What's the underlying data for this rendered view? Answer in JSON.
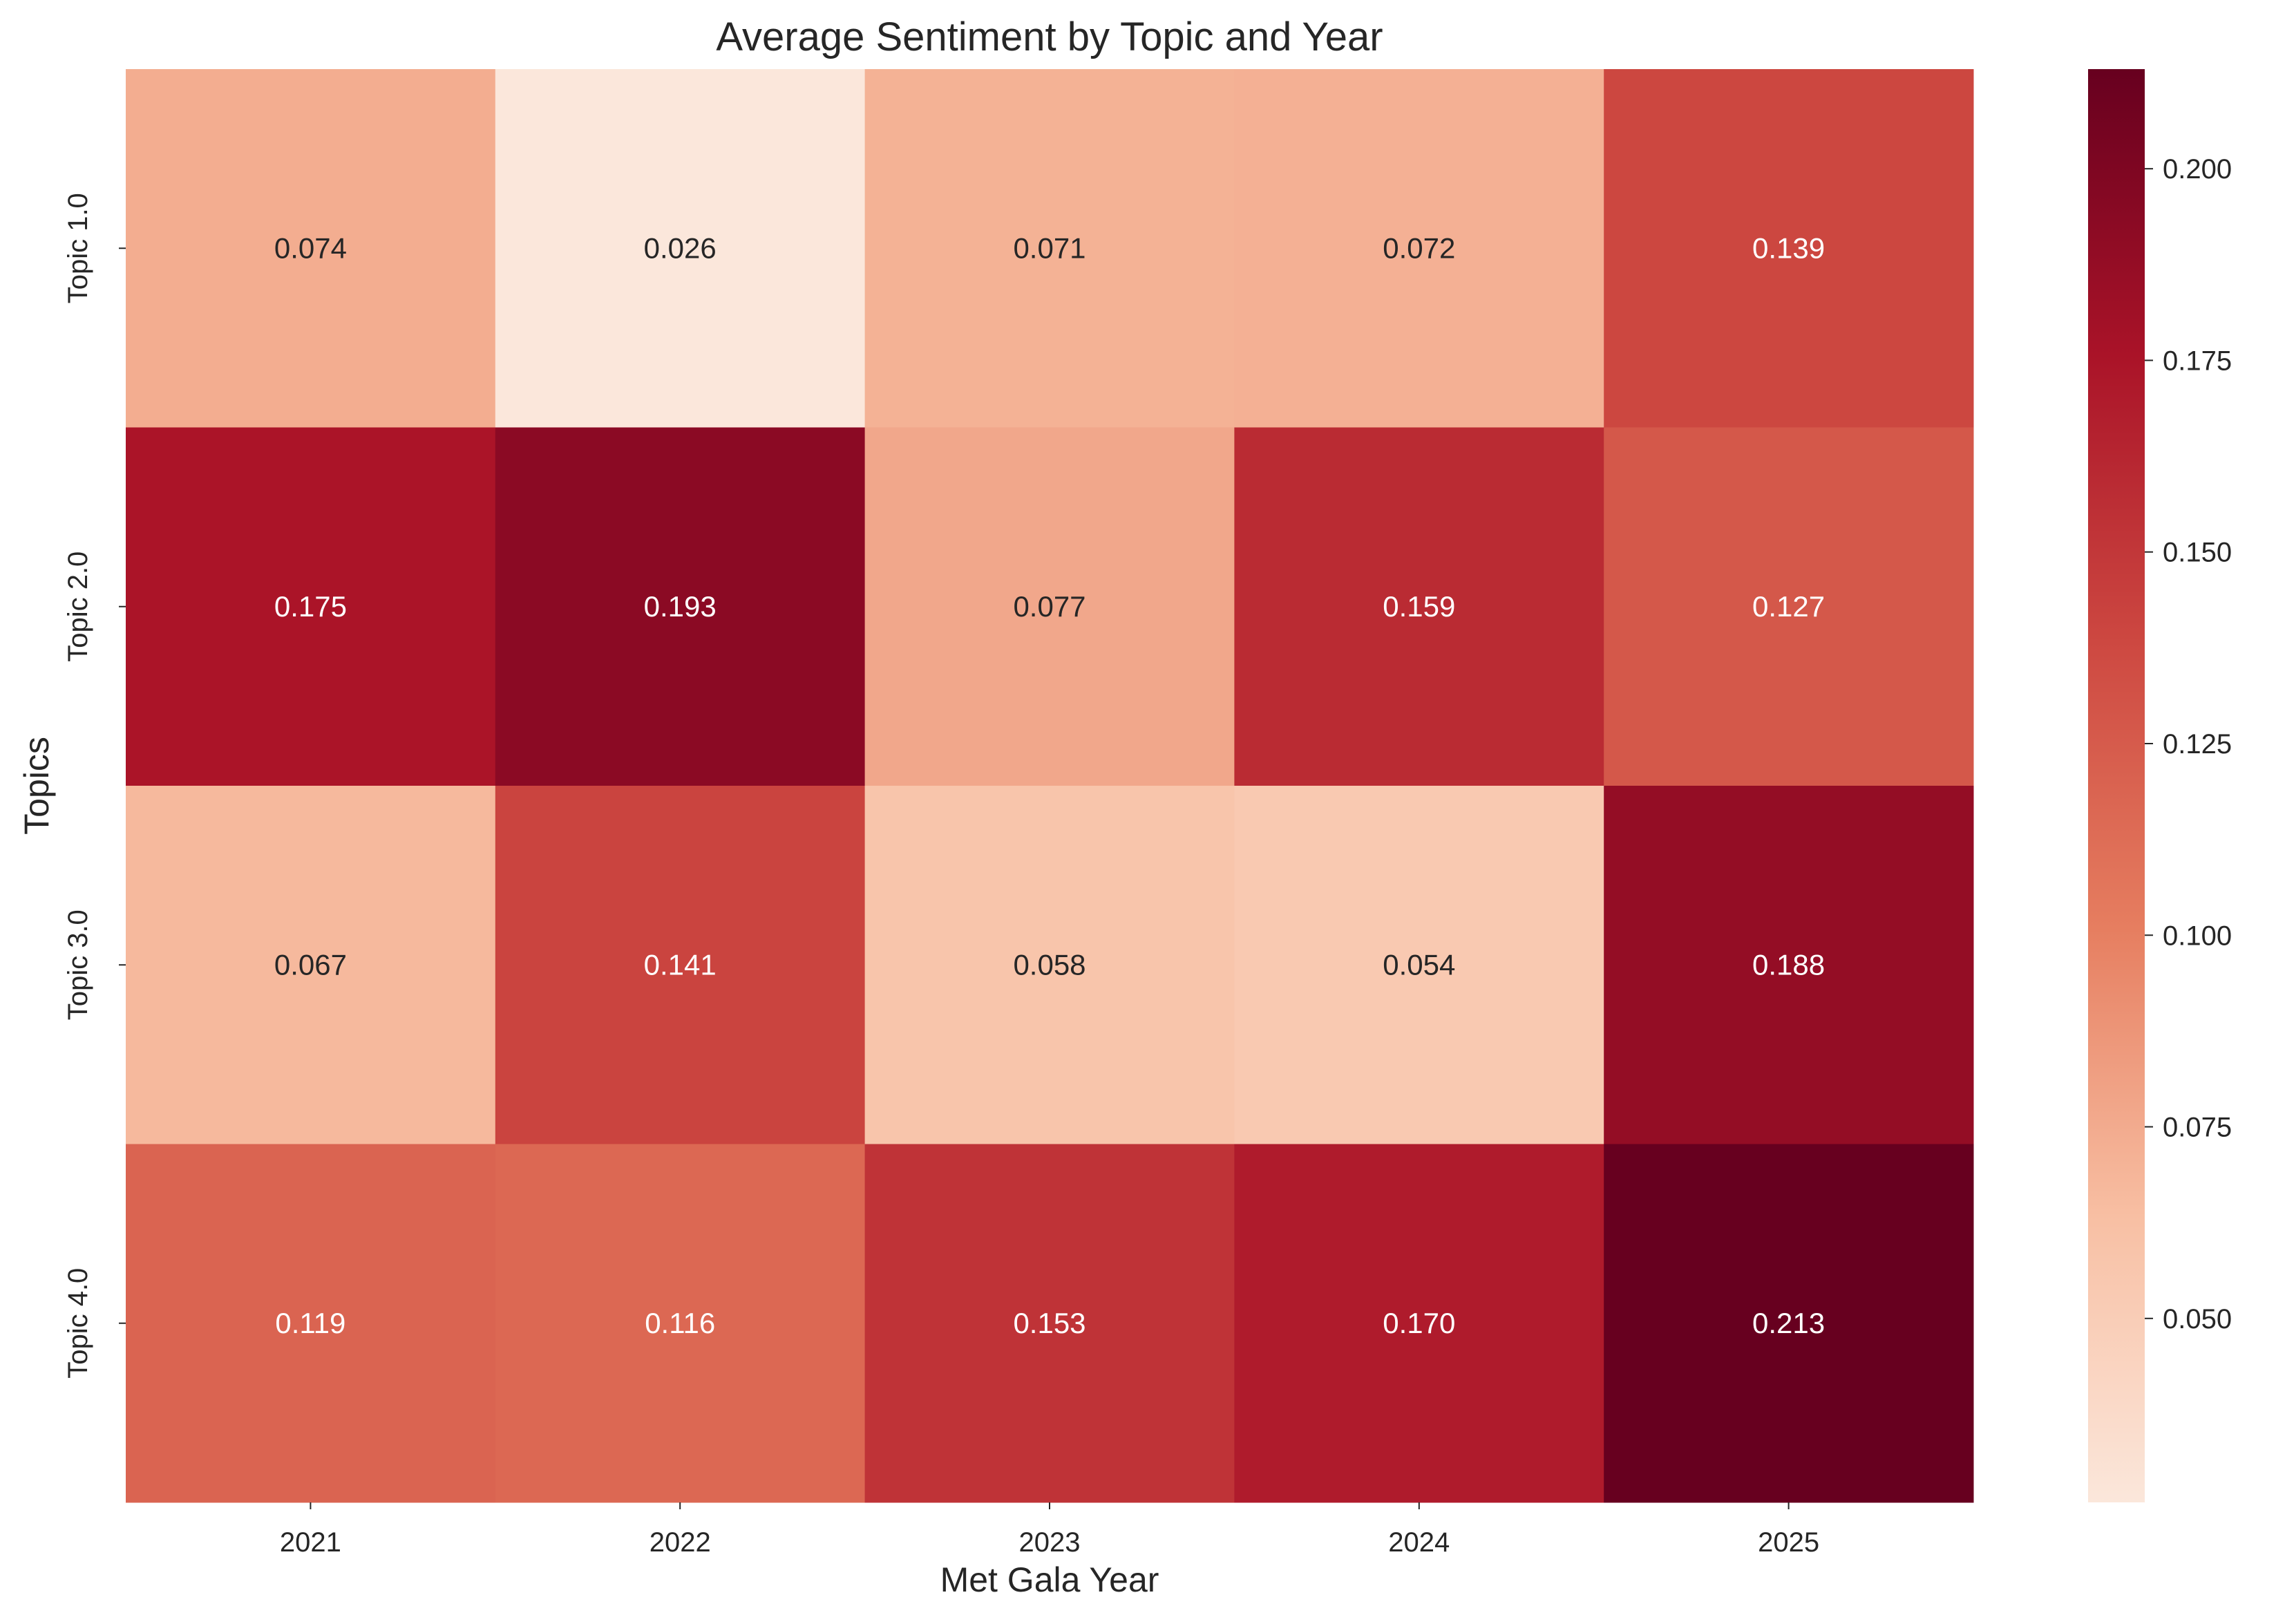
{
  "chart_data": {
    "type": "heatmap",
    "title": "Average Sentiment by Topic and Year",
    "xlabel": "Met Gala Year",
    "ylabel": "Topics",
    "x_categories": [
      "2021",
      "2022",
      "2023",
      "2024",
      "2025"
    ],
    "y_categories": [
      "Topic 1.0",
      "Topic 2.0",
      "Topic 3.0",
      "Topic 4.0"
    ],
    "values": [
      [
        0.074,
        0.026,
        0.071,
        0.072,
        0.139
      ],
      [
        0.175,
        0.193,
        0.077,
        0.159,
        0.127
      ],
      [
        0.067,
        0.141,
        0.058,
        0.054,
        0.188
      ],
      [
        0.119,
        0.116,
        0.153,
        0.17,
        0.213
      ]
    ],
    "value_format": "0.000",
    "colormap": "Reds",
    "color_range": [
      0.026,
      0.213
    ],
    "colorbar": {
      "ticks": [
        0.05,
        0.075,
        0.1,
        0.125,
        0.15,
        0.175,
        0.2
      ],
      "tick_labels": [
        "0.050",
        "0.075",
        "0.100",
        "0.125",
        "0.150",
        "0.175",
        "0.200"
      ],
      "placement": "right"
    },
    "grid": false,
    "legend": "none"
  }
}
